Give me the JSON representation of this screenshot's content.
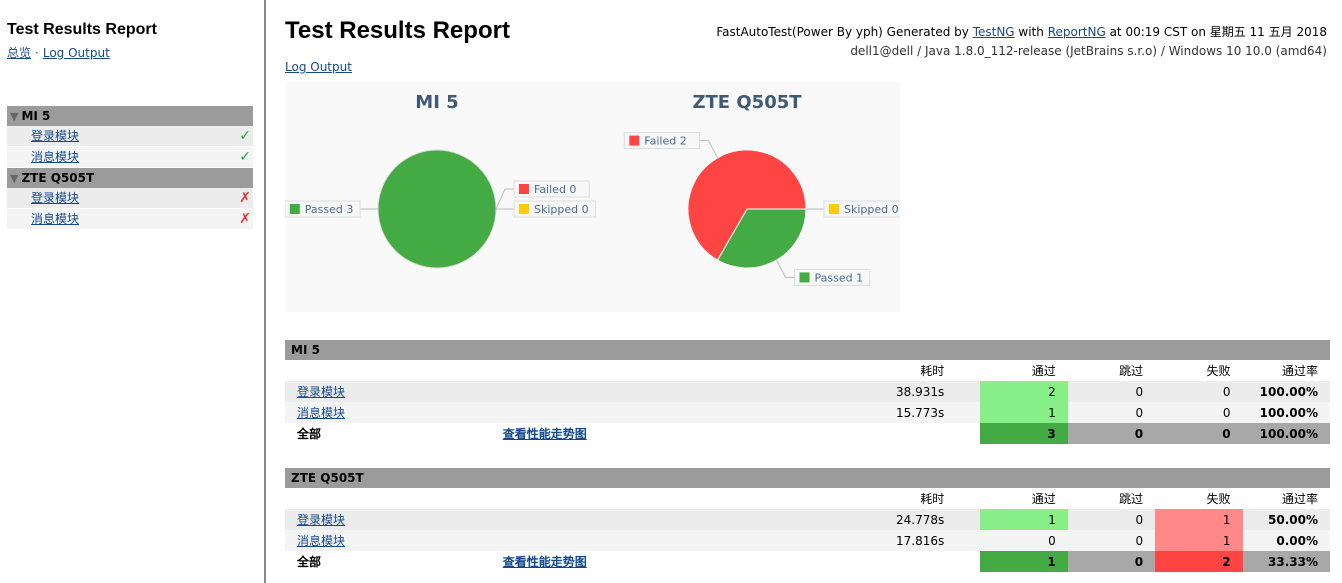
{
  "sidebar": {
    "title": "Test Results Report",
    "links": {
      "overview": "总览",
      "separator": "·",
      "log_output": "Log Output"
    },
    "suites": [
      {
        "name": "MI 5",
        "expander": "▼",
        "tests": [
          {
            "name": "登录模块",
            "status": "pass",
            "mark": "✓"
          },
          {
            "name": "消息模块",
            "status": "pass",
            "mark": "✓"
          }
        ]
      },
      {
        "name": "ZTE Q505T",
        "expander": "▼",
        "tests": [
          {
            "name": "登录模块",
            "status": "fail",
            "mark": "✗"
          },
          {
            "name": "消息模块",
            "status": "fail",
            "mark": "✗"
          }
        ]
      }
    ]
  },
  "header": {
    "title": "Test Results Report",
    "meta": {
      "prefix": "FastAutoTest(Power By yph) Generated by ",
      "testng": "TestNG",
      "with": " with ",
      "reportng": "ReportNG",
      "suffix": " at 00:19 CST on 星期五 11 五月 2018",
      "line2": "dell1@dell / Java 1.8.0_112-release (JetBrains s.r.o) / Windows 10 10.0 (amd64)"
    },
    "log_output": "Log Output"
  },
  "chart_data": [
    {
      "type": "pie",
      "title": "MI 5",
      "slices": [
        {
          "label": "Passed",
          "value": 3,
          "color": "#44aa44"
        },
        {
          "label": "Failed",
          "value": 0,
          "color": "#ff4444"
        },
        {
          "label": "Skipped",
          "value": 0,
          "color": "#ffcc00"
        }
      ]
    },
    {
      "type": "pie",
      "title": "ZTE Q505T",
      "slices": [
        {
          "label": "Passed",
          "value": 1,
          "color": "#44aa44"
        },
        {
          "label": "Failed",
          "value": 2,
          "color": "#ff4444"
        },
        {
          "label": "Skipped",
          "value": 0,
          "color": "#ffcc00"
        }
      ]
    }
  ],
  "tables": {
    "headers": {
      "duration": "耗时",
      "passed": "通过",
      "skipped": "跳过",
      "failed": "失败",
      "pass_rate": "通过率"
    },
    "suites": [
      {
        "name": "MI 5",
        "rows": [
          {
            "name": "登录模块",
            "duration": "38.931s",
            "passed": "2",
            "skipped": "0",
            "failed": "0",
            "rate": "100.00%"
          },
          {
            "name": "消息模块",
            "duration": "15.773s",
            "passed": "1",
            "skipped": "0",
            "failed": "0",
            "rate": "100.00%"
          }
        ],
        "total": {
          "label": "全部",
          "link": "查看性能走势图",
          "passed": "3",
          "skipped": "0",
          "failed": "0",
          "rate": "100.00%"
        }
      },
      {
        "name": "ZTE Q505T",
        "rows": [
          {
            "name": "登录模块",
            "duration": "24.778s",
            "passed": "1",
            "skipped": "0",
            "failed": "1",
            "rate": "50.00%"
          },
          {
            "name": "消息模块",
            "duration": "17.816s",
            "passed": "0",
            "skipped": "0",
            "failed": "1",
            "rate": "0.00%"
          }
        ],
        "total": {
          "label": "全部",
          "link": "查看性能走势图",
          "passed": "1",
          "skipped": "0",
          "failed": "2",
          "rate": "33.33%"
        }
      }
    ]
  },
  "colors": {
    "pass_light": "#88ee88",
    "pass_dark": "#44aa44",
    "fail_light": "#ff8888",
    "fail_dark": "#ff4444",
    "neutral": "#a8a8a8",
    "header_bar": "#9b9b9b",
    "chart_title": "#3f5a78",
    "link": "#15498b"
  }
}
